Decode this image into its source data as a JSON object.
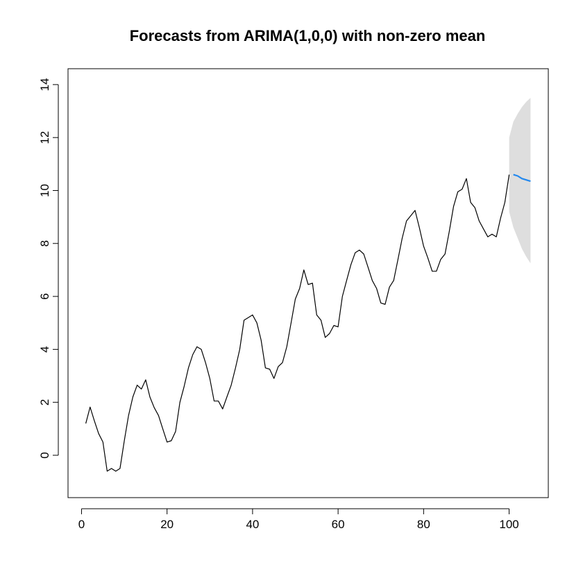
{
  "chart_data": {
    "type": "line",
    "title": "Forecasts from ARIMA(1,0,0) with non-zero mean",
    "xlabel": "",
    "ylabel": "",
    "xlim": [
      1,
      105
    ],
    "ylim": [
      -1,
      14
    ],
    "x_ticks": [
      0,
      20,
      40,
      60,
      80,
      100
    ],
    "y_ticks": [
      0,
      2,
      4,
      6,
      8,
      10,
      12,
      14
    ],
    "grid": false,
    "legend": "none",
    "colors": {
      "observed": "#000000",
      "forecast": "#2288ee",
      "interval": "#dedede"
    },
    "series": [
      {
        "x": [
          1,
          2,
          3,
          4,
          5,
          6,
          7,
          8,
          9,
          10,
          11,
          12,
          13,
          14,
          15,
          16,
          17,
          18,
          19,
          20,
          21,
          22,
          23,
          24,
          25,
          26,
          27,
          28,
          29,
          30,
          31,
          32,
          33,
          34,
          35,
          36,
          37,
          38,
          39,
          40,
          41,
          42,
          43,
          44,
          45,
          46,
          47,
          48,
          49,
          50,
          51,
          52,
          53,
          54,
          55,
          56,
          57,
          58,
          59,
          60,
          61,
          62,
          63,
          64,
          65,
          66,
          67,
          68,
          69,
          70,
          71,
          72,
          73,
          74,
          75,
          76,
          77,
          78,
          79,
          80,
          81,
          82,
          83,
          84,
          85,
          86,
          87,
          88,
          89,
          90,
          91,
          92,
          93,
          94,
          95,
          96,
          97,
          98,
          99,
          100
        ],
        "values": [
          1.2,
          1.82,
          1.3,
          0.82,
          0.5,
          -0.6,
          -0.5,
          -0.6,
          -0.5,
          0.55,
          1.5,
          2.2,
          2.65,
          2.5,
          2.85,
          2.2,
          1.8,
          1.5,
          1.0,
          0.5,
          0.55,
          0.9,
          2.0,
          2.6,
          3.3,
          3.8,
          4.1,
          4.0,
          3.5,
          2.9,
          2.05,
          2.05,
          1.75,
          2.2,
          2.65,
          3.3,
          4.0,
          5.1,
          5.2,
          5.3,
          5.0,
          4.35,
          3.3,
          3.25,
          2.9,
          3.35,
          3.5,
          4.1,
          5.0,
          5.9,
          6.3,
          7.0,
          6.45,
          6.5,
          5.3,
          5.1,
          4.45,
          4.6,
          4.9,
          4.85,
          6.0,
          6.6,
          7.2,
          7.65,
          7.75,
          7.6,
          7.1,
          6.6,
          6.3,
          5.75,
          5.7,
          6.35,
          6.6,
          7.4,
          8.2,
          8.85,
          9.05,
          9.25,
          8.6,
          7.9,
          7.45,
          6.95,
          6.95,
          7.4,
          7.6,
          8.45,
          9.4,
          9.95,
          10.05,
          10.45,
          9.55,
          9.35,
          8.85,
          8.55,
          8.25,
          8.35,
          8.25,
          8.95,
          9.55,
          10.6
        ]
      },
      {
        "x": [
          101,
          102,
          103,
          104,
          105
        ],
        "values": [
          10.6,
          10.55,
          10.45,
          10.4,
          10.35
        ]
      }
    ],
    "interval": {
      "x": [
        100,
        101,
        102,
        103,
        104,
        105
      ],
      "upper": [
        12.0,
        12.6,
        12.9,
        13.15,
        13.35,
        13.5
      ],
      "lower": [
        9.2,
        8.6,
        8.2,
        7.8,
        7.5,
        7.25
      ]
    }
  }
}
